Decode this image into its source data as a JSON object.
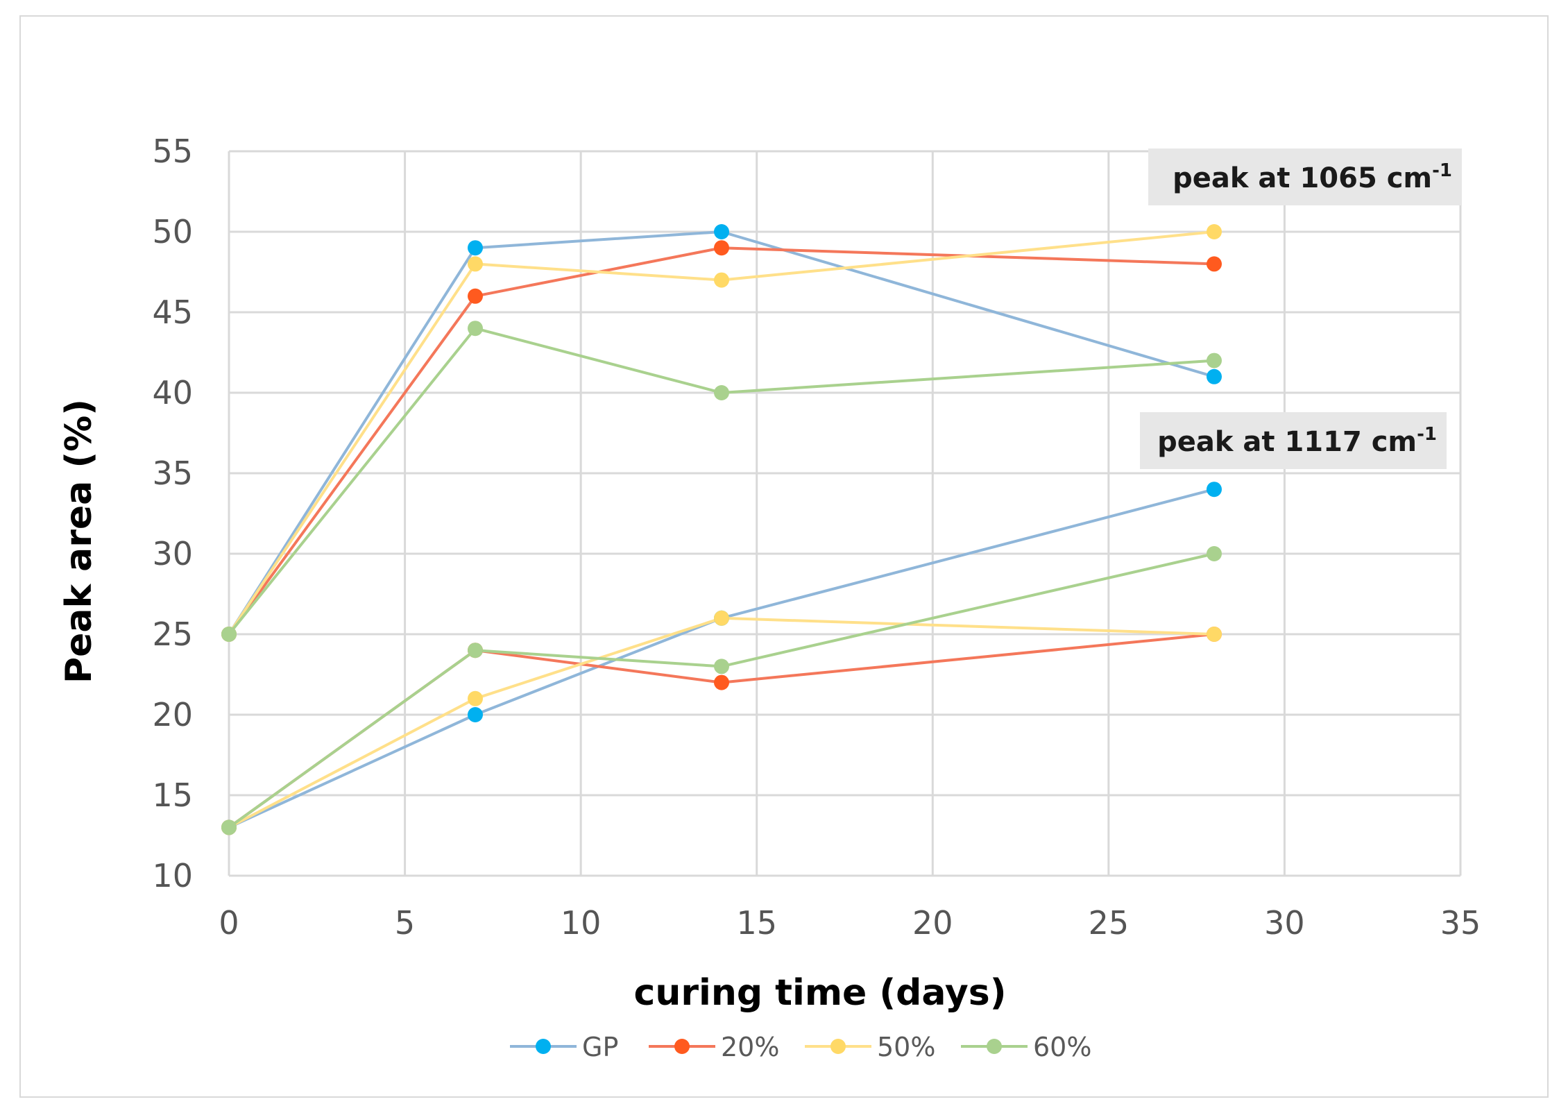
{
  "chart_data": {
    "type": "line",
    "title": "",
    "xlabel": "curing time (days)",
    "ylabel": "Peak area (%)",
    "xlim": [
      0,
      35
    ],
    "ylim": [
      10,
      55
    ],
    "xticks": [
      0,
      5,
      10,
      15,
      20,
      25,
      30,
      35
    ],
    "yticks": [
      10,
      15,
      20,
      25,
      30,
      35,
      40,
      45,
      50,
      55
    ],
    "grid": true,
    "legend_position": "bottom-center",
    "x": [
      0,
      7,
      14,
      28
    ],
    "groups": [
      {
        "label": "peak at 1065 cm",
        "label_sup": "-1",
        "series": [
          {
            "name": "GP",
            "color": "#00b0f0",
            "values": [
              25,
              49,
              50,
              41
            ]
          },
          {
            "name": "20%",
            "color": "#ff5a1f",
            "values": [
              25,
              46,
              49,
              48
            ]
          },
          {
            "name": "50%",
            "color": "#ffd966",
            "values": [
              25,
              48,
              47,
              50
            ]
          },
          {
            "name": "60%",
            "color": "#a9d18e",
            "values": [
              25,
              44,
              40,
              42
            ]
          }
        ]
      },
      {
        "label": "peak at 1117 cm",
        "label_sup": "-1",
        "series": [
          {
            "name": "GP",
            "color": "#00b0f0",
            "values": [
              13,
              20,
              26,
              34
            ]
          },
          {
            "name": "20%",
            "color": "#ff5a1f",
            "values": [
              13,
              24,
              22,
              25
            ]
          },
          {
            "name": "50%",
            "color": "#ffd966",
            "values": [
              13,
              21,
              26,
              25
            ]
          },
          {
            "name": "60%",
            "color": "#a9d18e",
            "values": [
              13,
              24,
              23,
              30
            ]
          }
        ]
      }
    ],
    "legend": [
      {
        "name": "GP",
        "color": "#00b0f0"
      },
      {
        "name": "20%",
        "color": "#ff5a1f"
      },
      {
        "name": "50%",
        "color": "#ffd966"
      },
      {
        "name": "60%",
        "color": "#a9d18e"
      }
    ],
    "line_colors": {
      "GP": "#8fb6d9",
      "20%": "#f4775a",
      "50%": "#ffe08a",
      "60%": "#a9d18e"
    }
  }
}
